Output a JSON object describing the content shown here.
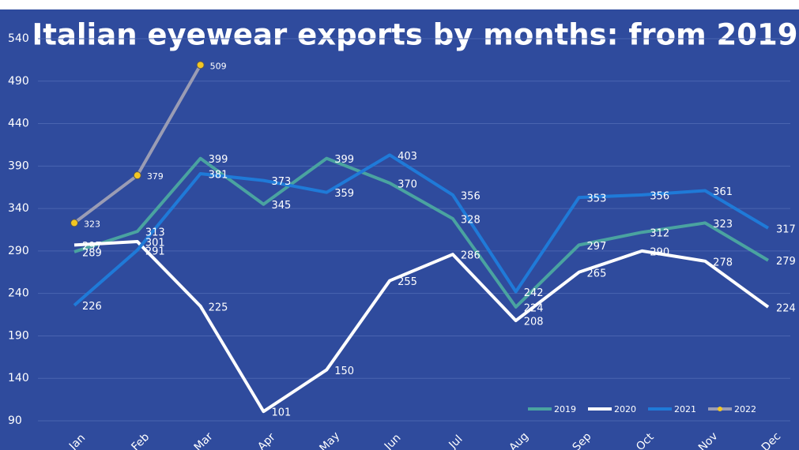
{
  "chart_data": {
    "type": "line",
    "title": "Italian eyewear exports by months: from 2019",
    "categories": [
      "Jan",
      "Feb",
      "Mar",
      "Apr",
      "May",
      "Jun",
      "Jul",
      "Aug",
      "Sep",
      "Oct",
      "Nov",
      "Dec"
    ],
    "series": [
      {
        "name": "2019",
        "color": "#4aa3a0",
        "values": [
          289,
          313,
          399,
          345,
          399,
          370,
          328,
          224,
          297,
          312,
          323,
          279
        ]
      },
      {
        "name": "2020",
        "color": "#ffffff",
        "values": [
          297,
          301,
          225,
          101,
          150,
          255,
          286,
          208,
          265,
          290,
          278,
          224
        ]
      },
      {
        "name": "2021",
        "color": "#1f7ad8",
        "values": [
          226,
          291,
          381,
          373,
          359,
          403,
          356,
          242,
          353,
          356,
          361,
          317
        ]
      },
      {
        "name": "2022",
        "color": "#9a9cb4",
        "marker_color": "#f2c623",
        "markers": true,
        "values": [
          323,
          379,
          509,
          null,
          null,
          null,
          null,
          null,
          null,
          null,
          null,
          null
        ]
      }
    ],
    "ylim": [
      90,
      540
    ],
    "yticks": [
      90,
      140,
      190,
      240,
      290,
      340,
      390,
      440,
      490,
      540
    ],
    "grid": true,
    "legend": "bottom-right"
  }
}
